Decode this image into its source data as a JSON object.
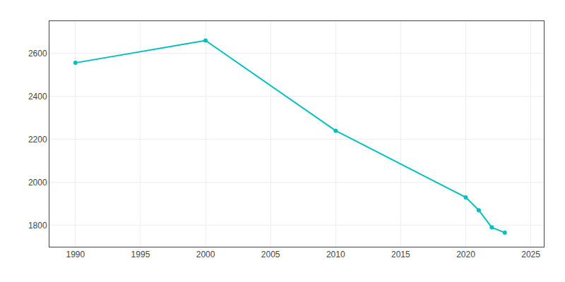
{
  "chart_data": {
    "type": "line",
    "x": [
      1990,
      2000,
      2010,
      2020,
      2021,
      2022,
      2023
    ],
    "values": [
      2556,
      2660,
      2240,
      1930,
      1870,
      1790,
      1766
    ],
    "color": "#00BFBF",
    "marker": "circle",
    "xlim": [
      1988,
      2026
    ],
    "ylim": [
      1700,
      2750
    ],
    "xticks": [
      1990,
      1995,
      2000,
      2005,
      2010,
      2015,
      2020,
      2025
    ],
    "yticks": [
      1800,
      2000,
      2200,
      2400,
      2600
    ],
    "grid": true
  }
}
